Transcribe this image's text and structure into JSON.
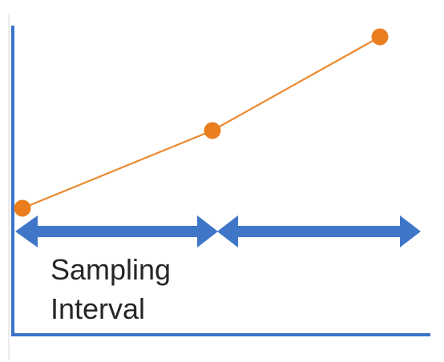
{
  "diagram": {
    "label_line_1": "Sampling",
    "label_line_2": "Interval"
  },
  "colors": {
    "axis": "#3A73C8",
    "arrow": "#3F76C7",
    "line": "#EC8A2F",
    "point": "#EA7E1E",
    "text": "#262626"
  }
}
